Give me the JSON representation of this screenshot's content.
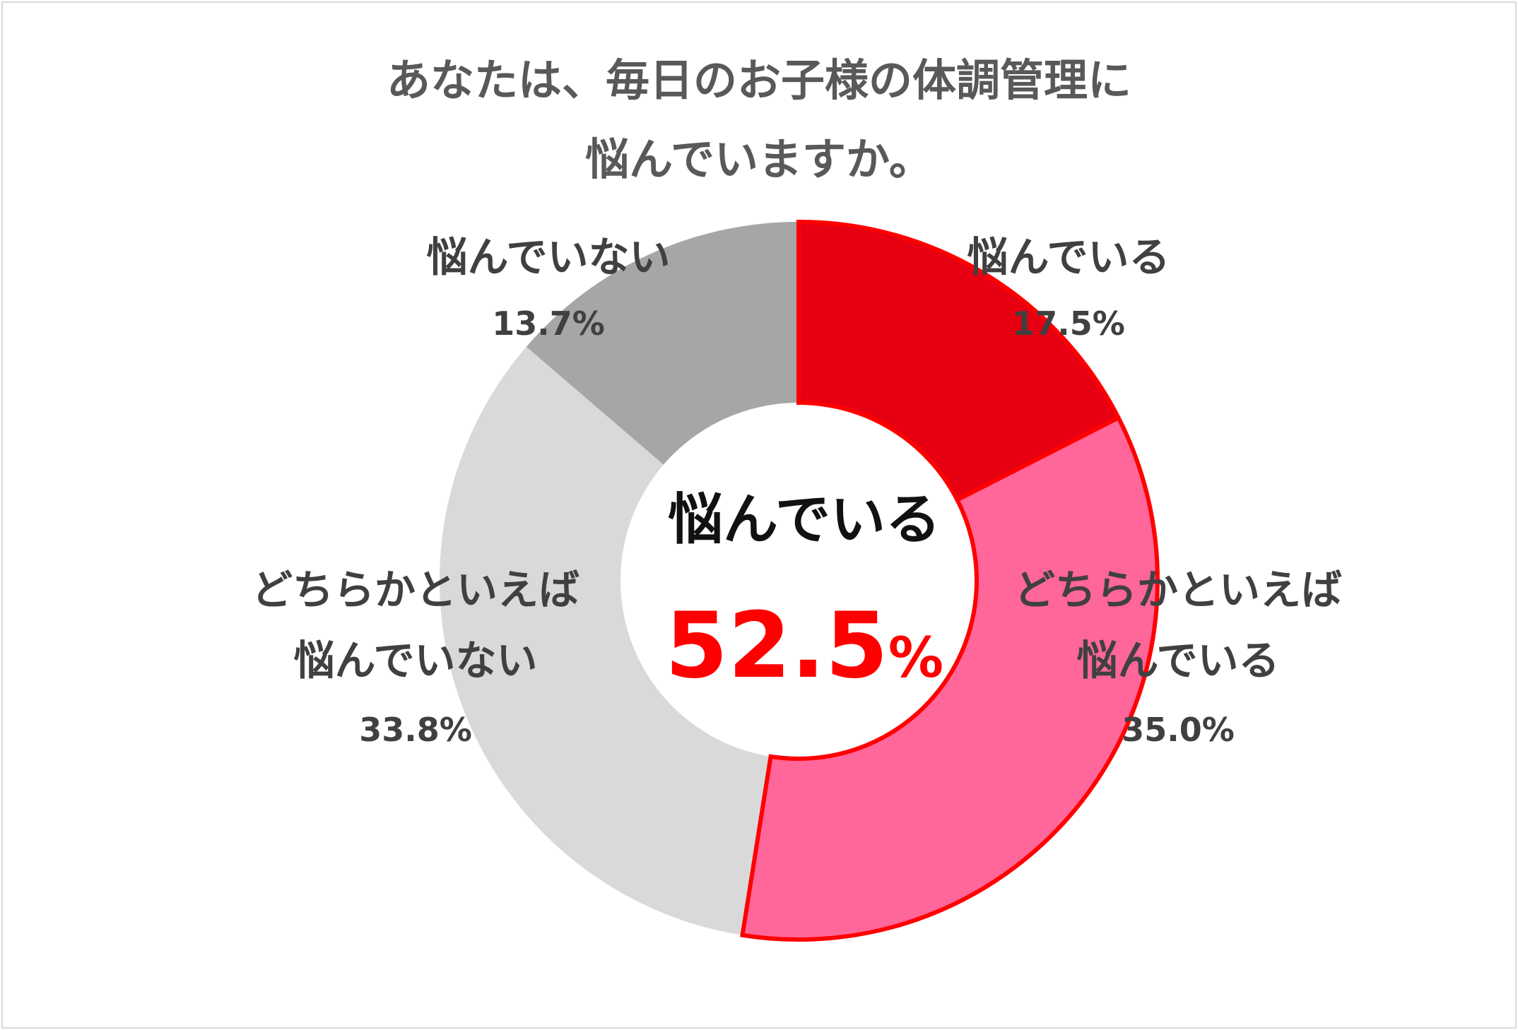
{
  "title": {
    "line1": "あなたは、毎日のお子様の体調管理に",
    "line2": "悩んでいますか。"
  },
  "center": {
    "label": "悩んでいる",
    "value": "52.5",
    "unit": "%",
    "label_color": "#111111",
    "value_color": "#ff0000"
  },
  "chart_data": {
    "type": "pie",
    "variant": "donut",
    "title": "あなたは、毎日のお子様の体調管理に悩んでいますか。",
    "unit": "%",
    "slices": [
      {
        "label": "悩んでいる",
        "label_lines": [
          "悩んでいる"
        ],
        "value": 17.5,
        "display": "17.5%",
        "color": "#e60012",
        "stroke": "#ff0000"
      },
      {
        "label": "どちらかといえば悩んでいる",
        "label_lines": [
          "どちらかといえば",
          "悩んでいる"
        ],
        "value": 35.0,
        "display": "35.0%",
        "color": "#ff6699",
        "stroke": "#ff0000"
      },
      {
        "label": "どちらかといえば悩んでいない",
        "label_lines": [
          "どちらかといえば",
          "悩んでいない"
        ],
        "value": 33.8,
        "display": "33.8%",
        "color": "#d9d9d9",
        "stroke": null
      },
      {
        "label": "悩んでいない",
        "label_lines": [
          "悩んでいない"
        ],
        "value": 13.7,
        "display": "13.7%",
        "color": "#a6a6a6",
        "stroke": null
      }
    ],
    "legend": "none"
  }
}
